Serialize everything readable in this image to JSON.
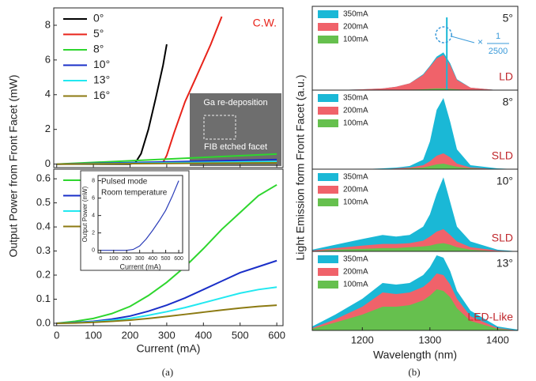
{
  "chart_data": [
    {
      "type": "line",
      "ylabel": "Output Power from Front Facet (mW)",
      "annotation": "C.W.",
      "photo_labels": [
        "Ga re-deposition",
        "FIB etched facet"
      ],
      "xlim": [
        -8,
        617
      ],
      "xticks": [
        0,
        100,
        200,
        300,
        400,
        500,
        600
      ],
      "ylim": [
        -0.2,
        9.0
      ],
      "yticks": [
        0,
        2,
        4,
        6,
        8
      ],
      "series": [
        {
          "name": "0°",
          "color": "#000000",
          "x": [
            0,
            200,
            215,
            230,
            250,
            270,
            290,
            300
          ],
          "values": [
            0,
            0,
            0.1,
            0.6,
            2,
            3.8,
            5.7,
            6.9
          ]
        },
        {
          "name": "5°",
          "color": "#e8231a",
          "x": [
            0,
            290,
            300,
            320,
            350,
            380,
            420,
            450
          ],
          "values": [
            0,
            0.1,
            0.5,
            1.8,
            3.6,
            5,
            6.9,
            8.5
          ]
        },
        {
          "name": "8°",
          "color": "#2ed62e",
          "x": [
            0,
            600
          ],
          "values": [
            0,
            0.58
          ]
        },
        {
          "name": "10°",
          "color": "#1a2fc8",
          "x": [
            0,
            600
          ],
          "values": [
            0,
            0.26
          ]
        },
        {
          "name": "13°",
          "color": "#22e8f0",
          "x": [
            0,
            600
          ],
          "values": [
            0,
            0.15
          ]
        },
        {
          "name": "16°",
          "color": "#8c7a12",
          "x": [
            0,
            600
          ],
          "values": [
            0,
            0.075
          ]
        }
      ]
    },
    {
      "type": "line",
      "xlabel": "Current (mA)",
      "caption": "(a)",
      "xlim": [
        -8,
        617
      ],
      "xticks": [
        0,
        100,
        200,
        300,
        400,
        500,
        600
      ],
      "ylim": [
        -0.01,
        0.64
      ],
      "yticks": [
        {
          "value": 0,
          "label": "0.0"
        },
        0.1,
        0.2,
        0.3,
        0.4,
        0.5,
        0.6
      ],
      "series": [
        {
          "name": "8°",
          "color": "#2ed62e",
          "x": [
            0,
            50,
            100,
            150,
            200,
            250,
            300,
            350,
            400,
            450,
            500,
            550,
            600
          ],
          "values": [
            0,
            0.008,
            0.02,
            0.04,
            0.07,
            0.115,
            0.17,
            0.235,
            0.31,
            0.39,
            0.46,
            0.53,
            0.575
          ]
        },
        {
          "name": "10°",
          "color": "#1a2fc8",
          "x": [
            0,
            50,
            100,
            150,
            200,
            250,
            300,
            350,
            400,
            450,
            500,
            550,
            600
          ],
          "values": [
            0,
            0.003,
            0.008,
            0.017,
            0.03,
            0.05,
            0.075,
            0.105,
            0.14,
            0.175,
            0.21,
            0.235,
            0.26
          ]
        },
        {
          "name": "13°",
          "color": "#22e8f0",
          "x": [
            0,
            50,
            100,
            150,
            200,
            250,
            300,
            350,
            400,
            450,
            500,
            550,
            600
          ],
          "values": [
            0,
            0.002,
            0.006,
            0.012,
            0.02,
            0.033,
            0.048,
            0.065,
            0.085,
            0.105,
            0.125,
            0.14,
            0.15
          ]
        },
        {
          "name": "16°",
          "color": "#8c7a12",
          "x": [
            0,
            50,
            100,
            150,
            200,
            250,
            300,
            350,
            400,
            450,
            500,
            550,
            600
          ],
          "values": [
            0,
            0.001,
            0.004,
            0.008,
            0.013,
            0.02,
            0.028,
            0.037,
            0.046,
            0.055,
            0.063,
            0.07,
            0.075
          ]
        }
      ]
    },
    {
      "type": "line",
      "xlabel": "Current (mA)",
      "ylabel": "Output Power (mW)",
      "annotation_lines": [
        "Pulsed mode",
        "Room temperature"
      ],
      "xlim": [
        -20,
        630
      ],
      "xticks": [
        0,
        100,
        200,
        300,
        400,
        500,
        600
      ],
      "ylim": [
        -0.3,
        8.6
      ],
      "yticks": [
        0,
        2,
        4,
        6,
        8
      ],
      "series": [
        {
          "color": "#2a3cb8",
          "x": [
            0,
            200,
            250,
            300,
            350,
            400,
            450,
            500,
            550,
            600
          ],
          "values": [
            0,
            0,
            0.1,
            0.5,
            1.3,
            2.3,
            3.4,
            4.6,
            6.2,
            8.0
          ]
        }
      ]
    },
    {
      "type": "area",
      "ylabel": "Light Emission form Front Facet (a.u.)",
      "angle": "5°",
      "label": "LD",
      "marker_x": 1325,
      "scale_lines": [
        "×",
        "1",
        "2500"
      ],
      "xlim": [
        1126,
        1430
      ],
      "ylim": [
        0,
        1
      ],
      "x": [
        1126,
        1160,
        1200,
        1230,
        1250,
        1270,
        1290,
        1300,
        1310,
        1320,
        1330,
        1340,
        1360,
        1400,
        1430
      ],
      "series": [
        {
          "name": "350mA",
          "color": "#1ab8d6",
          "values": [
            0,
            0,
            0.01,
            0.02,
            0.04,
            0.08,
            0.19,
            0.29,
            0.4,
            0.45,
            0.32,
            0.13,
            0.03,
            0,
            0
          ]
        },
        {
          "name": "200mA",
          "color": "#f0626a",
          "values": [
            0,
            0,
            0.01,
            0.02,
            0.04,
            0.08,
            0.18,
            0.28,
            0.38,
            0.42,
            0.3,
            0.12,
            0.03,
            0,
            0
          ]
        },
        {
          "name": "100mA",
          "color": "#66c04e",
          "values": [
            0,
            0,
            0,
            0,
            0,
            0.005,
            0.01,
            0.015,
            0.02,
            0.02,
            0.015,
            0.01,
            0,
            0,
            0
          ]
        }
      ]
    },
    {
      "type": "area",
      "angle": "8°",
      "label": "SLD",
      "xlim": [
        1126,
        1430
      ],
      "ylim": [
        0,
        1
      ],
      "x": [
        1126,
        1160,
        1200,
        1230,
        1250,
        1270,
        1290,
        1300,
        1310,
        1320,
        1330,
        1340,
        1360,
        1400,
        1430
      ],
      "series": [
        {
          "name": "350mA",
          "color": "#1ab8d6",
          "values": [
            0,
            0,
            0,
            0.01,
            0.02,
            0.04,
            0.12,
            0.35,
            0.75,
            0.9,
            0.6,
            0.25,
            0.05,
            0.01,
            0
          ]
        },
        {
          "name": "200mA",
          "color": "#f0626a",
          "values": [
            0,
            0,
            0,
            0,
            0.01,
            0.02,
            0.05,
            0.1,
            0.17,
            0.2,
            0.15,
            0.07,
            0.02,
            0,
            0
          ]
        },
        {
          "name": "100mA",
          "color": "#66c04e",
          "values": [
            0,
            0,
            0,
            0,
            0,
            0.01,
            0.02,
            0.04,
            0.06,
            0.07,
            0.05,
            0.03,
            0.01,
            0,
            0
          ]
        }
      ]
    },
    {
      "type": "area",
      "angle": "10°",
      "label": "SLD",
      "xlim": [
        1126,
        1430
      ],
      "ylim": [
        0,
        1
      ],
      "x": [
        1126,
        1160,
        1200,
        1230,
        1250,
        1270,
        1290,
        1300,
        1310,
        1320,
        1330,
        1340,
        1360,
        1400,
        1430
      ],
      "series": [
        {
          "name": "350mA",
          "color": "#1ab8d6",
          "values": [
            0.02,
            0.08,
            0.15,
            0.2,
            0.18,
            0.2,
            0.3,
            0.45,
            0.7,
            0.9,
            0.6,
            0.3,
            0.12,
            0.02,
            0
          ]
        },
        {
          "name": "200mA",
          "color": "#f0626a",
          "values": [
            0.01,
            0.04,
            0.07,
            0.09,
            0.09,
            0.1,
            0.13,
            0.18,
            0.24,
            0.27,
            0.2,
            0.12,
            0.05,
            0.01,
            0
          ]
        },
        {
          "name": "100mA",
          "color": "#66c04e",
          "values": [
            0,
            0.02,
            0.03,
            0.04,
            0.04,
            0.05,
            0.06,
            0.07,
            0.09,
            0.1,
            0.08,
            0.05,
            0.02,
            0,
            0
          ]
        }
      ]
    },
    {
      "type": "area",
      "angle": "13°",
      "label": "LED-Like",
      "xlabel": "Wavelength (nm)",
      "caption": "(b)",
      "xlim": [
        1126,
        1430
      ],
      "ylim": [
        0,
        1
      ],
      "xticks": [
        1200,
        1300,
        1400
      ],
      "x": [
        1126,
        1160,
        1200,
        1230,
        1250,
        1270,
        1290,
        1300,
        1310,
        1320,
        1330,
        1340,
        1360,
        1400,
        1430
      ],
      "series": [
        {
          "name": "350mA",
          "color": "#1ab8d6",
          "values": [
            0.05,
            0.2,
            0.4,
            0.6,
            0.58,
            0.6,
            0.7,
            0.8,
            0.95,
            0.92,
            0.75,
            0.5,
            0.25,
            0.05,
            0.01
          ]
        },
        {
          "name": "200mA",
          "color": "#f0626a",
          "values": [
            0.03,
            0.14,
            0.3,
            0.48,
            0.46,
            0.48,
            0.55,
            0.62,
            0.72,
            0.7,
            0.58,
            0.4,
            0.18,
            0.03,
            0
          ]
        },
        {
          "name": "100mA",
          "color": "#66c04e",
          "values": [
            0.02,
            0.1,
            0.2,
            0.3,
            0.3,
            0.32,
            0.38,
            0.44,
            0.52,
            0.5,
            0.42,
            0.28,
            0.12,
            0.02,
            0
          ]
        }
      ]
    }
  ]
}
